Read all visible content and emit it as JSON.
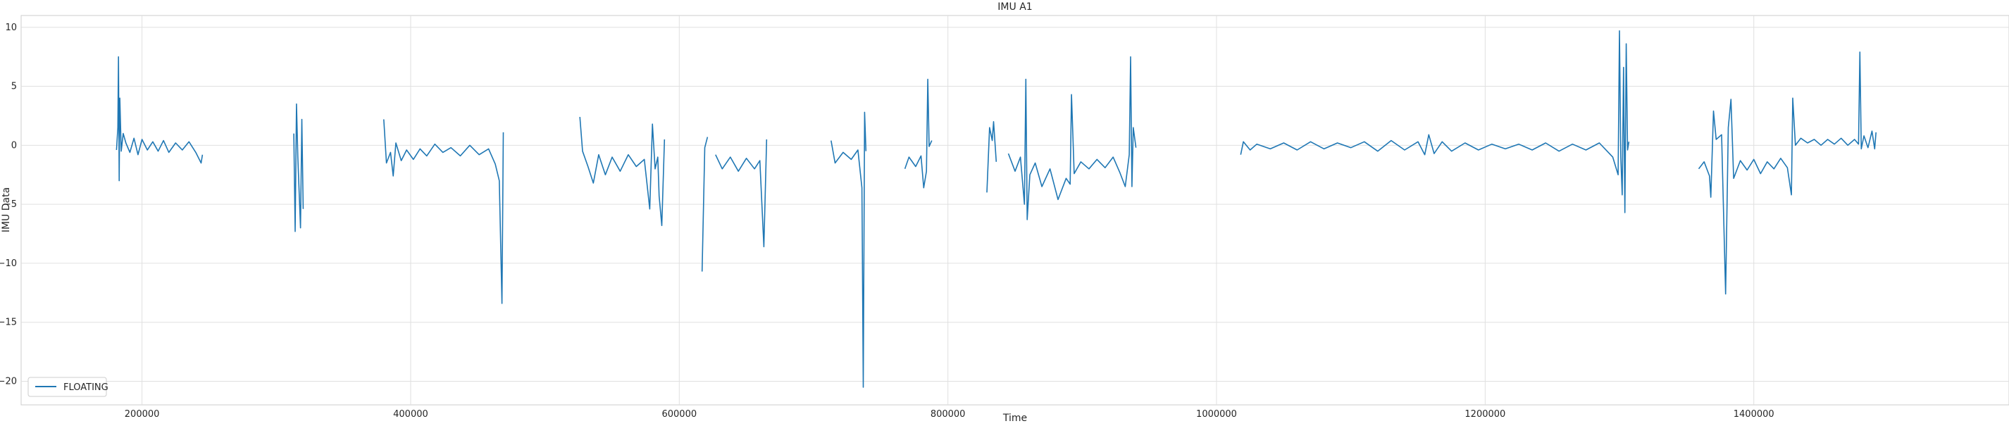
{
  "chart_data": {
    "type": "line",
    "title": "IMU A1",
    "xlabel": "Time",
    "ylabel": "IMU Data",
    "xlim": [
      110000,
      1590000
    ],
    "ylim": [
      -22,
      11
    ],
    "xticks": [
      200000,
      400000,
      600000,
      800000,
      1000000,
      1200000,
      1400000
    ],
    "xtick_labels": [
      "200000",
      "400000",
      "600000",
      "800000",
      "1000000",
      "1200000",
      "1400000"
    ],
    "yticks": [
      10,
      5,
      0,
      -5,
      -10,
      -15,
      -20
    ],
    "ytick_labels": [
      "10",
      "5",
      "0",
      "−5",
      "−10",
      "−15",
      "−20"
    ],
    "grid": true,
    "legend": {
      "position": "lower-left",
      "entries": [
        "FLOATING"
      ]
    },
    "series": [
      {
        "name": "FLOATING",
        "color": "#1f77b4",
        "segments": [
          [
            [
              181000,
              -0.4
            ],
            [
              182000,
              1.5
            ],
            [
              182500,
              7.5
            ],
            [
              183000,
              -3.0
            ],
            [
              183500,
              4.0
            ],
            [
              184500,
              -0.5
            ],
            [
              186000,
              1.0
            ],
            [
              188000,
              0.2
            ],
            [
              191000,
              -0.6
            ],
            [
              194000,
              0.6
            ],
            [
              197000,
              -0.8
            ],
            [
              200000,
              0.5
            ],
            [
              204000,
              -0.4
            ],
            [
              208000,
              0.3
            ],
            [
              212000,
              -0.5
            ],
            [
              216000,
              0.4
            ],
            [
              220000,
              -0.6
            ],
            [
              225000,
              0.2
            ],
            [
              230000,
              -0.4
            ],
            [
              235000,
              0.3
            ],
            [
              240000,
              -0.6
            ],
            [
              244000,
              -1.5
            ],
            [
              245000,
              -0.8
            ]
          ],
          [
            [
              313000,
              1.0
            ],
            [
              314000,
              -7.3
            ],
            [
              315000,
              3.5
            ],
            [
              316000,
              -1.0
            ],
            [
              318000,
              -7.0
            ],
            [
              319000,
              2.2
            ],
            [
              320000,
              -5.4
            ]
          ],
          [
            [
              380000,
              2.2
            ],
            [
              382000,
              -1.5
            ],
            [
              385000,
              -0.6
            ],
            [
              387000,
              -2.6
            ],
            [
              389000,
              0.2
            ],
            [
              393000,
              -1.3
            ],
            [
              397000,
              -0.4
            ],
            [
              402000,
              -1.2
            ],
            [
              407000,
              -0.3
            ],
            [
              412000,
              -0.9
            ],
            [
              418000,
              0.1
            ],
            [
              424000,
              -0.6
            ],
            [
              430000,
              -0.2
            ],
            [
              437000,
              -0.9
            ],
            [
              444000,
              0.0
            ],
            [
              451000,
              -0.8
            ],
            [
              458000,
              -0.3
            ],
            [
              463000,
              -1.6
            ],
            [
              466000,
              -3.0
            ],
            [
              468000,
              -13.4
            ],
            [
              469000,
              1.1
            ]
          ],
          [
            [
              526000,
              2.4
            ],
            [
              528000,
              -0.5
            ],
            [
              532000,
              -1.8
            ],
            [
              536000,
              -3.2
            ],
            [
              540000,
              -0.8
            ],
            [
              545000,
              -2.5
            ],
            [
              550000,
              -1.0
            ],
            [
              556000,
              -2.2
            ],
            [
              562000,
              -0.8
            ],
            [
              568000,
              -1.8
            ],
            [
              574000,
              -1.2
            ],
            [
              578000,
              -5.4
            ],
            [
              580000,
              1.8
            ],
            [
              582000,
              -2.0
            ],
            [
              584000,
              -1.0
            ],
            [
              585000,
              -4.3
            ],
            [
              587000,
              -6.8
            ],
            [
              589000,
              0.5
            ]
          ],
          [
            [
              617000,
              -10.7
            ],
            [
              619000,
              -0.2
            ],
            [
              621000,
              0.7
            ]
          ],
          [
            [
              627000,
              -0.8
            ],
            [
              632000,
              -2.0
            ],
            [
              638000,
              -1.0
            ],
            [
              644000,
              -2.2
            ],
            [
              650000,
              -1.1
            ],
            [
              656000,
              -2.0
            ],
            [
              660000,
              -1.3
            ],
            [
              663000,
              -8.6
            ],
            [
              665000,
              0.5
            ]
          ],
          [
            [
              713000,
              0.4
            ],
            [
              716000,
              -1.5
            ],
            [
              722000,
              -0.6
            ],
            [
              728000,
              -1.2
            ],
            [
              733000,
              -0.4
            ],
            [
              736000,
              -3.6
            ],
            [
              737000,
              -20.5
            ],
            [
              738000,
              2.8
            ],
            [
              739000,
              -0.5
            ]
          ],
          [
            [
              768000,
              -2.0
            ],
            [
              771000,
              -1.0
            ],
            [
              776000,
              -1.8
            ],
            [
              780000,
              -0.9
            ],
            [
              782000,
              -3.6
            ],
            [
              784000,
              -2.2
            ],
            [
              785000,
              5.6
            ],
            [
              786000,
              -0.1
            ],
            [
              788000,
              0.4
            ]
          ],
          [
            [
              829000,
              -4.0
            ],
            [
              831000,
              1.5
            ],
            [
              833000,
              0.4
            ],
            [
              834000,
              2.0
            ],
            [
              836000,
              -1.4
            ]
          ],
          [
            [
              845000,
              -0.7
            ],
            [
              850000,
              -2.2
            ],
            [
              854000,
              -1.0
            ],
            [
              857000,
              -5.0
            ],
            [
              858000,
              5.6
            ],
            [
              859000,
              -6.3
            ],
            [
              861000,
              -2.5
            ],
            [
              865000,
              -1.5
            ],
            [
              870000,
              -3.5
            ],
            [
              876000,
              -2.0
            ],
            [
              882000,
              -4.6
            ],
            [
              888000,
              -2.8
            ],
            [
              891000,
              -3.3
            ],
            [
              892000,
              4.3
            ],
            [
              894000,
              -2.4
            ],
            [
              899000,
              -1.4
            ],
            [
              905000,
              -2.0
            ],
            [
              911000,
              -1.2
            ],
            [
              917000,
              -1.9
            ],
            [
              923000,
              -1.0
            ],
            [
              928000,
              -2.3
            ],
            [
              932000,
              -3.5
            ],
            [
              935000,
              -0.8
            ],
            [
              936000,
              7.5
            ],
            [
              937000,
              -3.5
            ],
            [
              938000,
              1.5
            ],
            [
              940000,
              -0.2
            ]
          ],
          [
            [
              1018000,
              -0.8
            ],
            [
              1020000,
              0.3
            ],
            [
              1025000,
              -0.4
            ],
            [
              1030000,
              0.1
            ],
            [
              1040000,
              -0.3
            ],
            [
              1050000,
              0.2
            ],
            [
              1060000,
              -0.4
            ],
            [
              1070000,
              0.3
            ],
            [
              1080000,
              -0.3
            ],
            [
              1090000,
              0.2
            ],
            [
              1100000,
              -0.2
            ],
            [
              1110000,
              0.3
            ],
            [
              1120000,
              -0.5
            ],
            [
              1130000,
              0.4
            ],
            [
              1140000,
              -0.4
            ],
            [
              1150000,
              0.3
            ],
            [
              1155000,
              -0.8
            ],
            [
              1158000,
              0.9
            ],
            [
              1162000,
              -0.7
            ],
            [
              1168000,
              0.3
            ],
            [
              1175000,
              -0.5
            ],
            [
              1185000,
              0.2
            ],
            [
              1195000,
              -0.4
            ],
            [
              1205000,
              0.1
            ],
            [
              1215000,
              -0.3
            ],
            [
              1225000,
              0.1
            ],
            [
              1235000,
              -0.4
            ],
            [
              1245000,
              0.2
            ],
            [
              1255000,
              -0.5
            ],
            [
              1265000,
              0.1
            ],
            [
              1275000,
              -0.4
            ],
            [
              1285000,
              0.2
            ],
            [
              1295000,
              -1.0
            ],
            [
              1299000,
              -2.5
            ],
            [
              1300000,
              9.7
            ],
            [
              1301000,
              -1.0
            ],
            [
              1302000,
              -4.2
            ],
            [
              1303000,
              6.6
            ],
            [
              1304000,
              -5.7
            ],
            [
              1305000,
              8.6
            ],
            [
              1306000,
              -0.4
            ],
            [
              1307000,
              0.3
            ]
          ],
          [
            [
              1359000,
              -2.0
            ],
            [
              1363000,
              -1.4
            ],
            [
              1367000,
              -2.6
            ],
            [
              1368000,
              -4.4
            ],
            [
              1370000,
              2.9
            ],
            [
              1372000,
              0.5
            ],
            [
              1376000,
              0.9
            ],
            [
              1379000,
              -12.6
            ],
            [
              1381000,
              1.5
            ],
            [
              1383000,
              3.9
            ],
            [
              1385000,
              -2.8
            ],
            [
              1390000,
              -1.3
            ],
            [
              1395000,
              -2.1
            ],
            [
              1400000,
              -1.2
            ],
            [
              1405000,
              -2.4
            ],
            [
              1410000,
              -1.4
            ],
            [
              1415000,
              -2.0
            ],
            [
              1420000,
              -1.1
            ],
            [
              1425000,
              -1.9
            ],
            [
              1428000,
              -4.2
            ],
            [
              1429000,
              4.0
            ],
            [
              1431000,
              0.0
            ],
            [
              1435000,
              0.6
            ],
            [
              1440000,
              0.2
            ],
            [
              1445000,
              0.5
            ],
            [
              1450000,
              0.0
            ],
            [
              1455000,
              0.5
            ],
            [
              1460000,
              0.1
            ],
            [
              1465000,
              0.6
            ],
            [
              1470000,
              0.0
            ],
            [
              1475000,
              0.5
            ],
            [
              1478000,
              0.1
            ],
            [
              1479000,
              7.9
            ],
            [
              1480000,
              -0.3
            ],
            [
              1482000,
              0.8
            ],
            [
              1485000,
              -0.2
            ],
            [
              1488000,
              1.2
            ],
            [
              1490000,
              -0.3
            ],
            [
              1491000,
              1.1
            ]
          ]
        ]
      }
    ]
  }
}
